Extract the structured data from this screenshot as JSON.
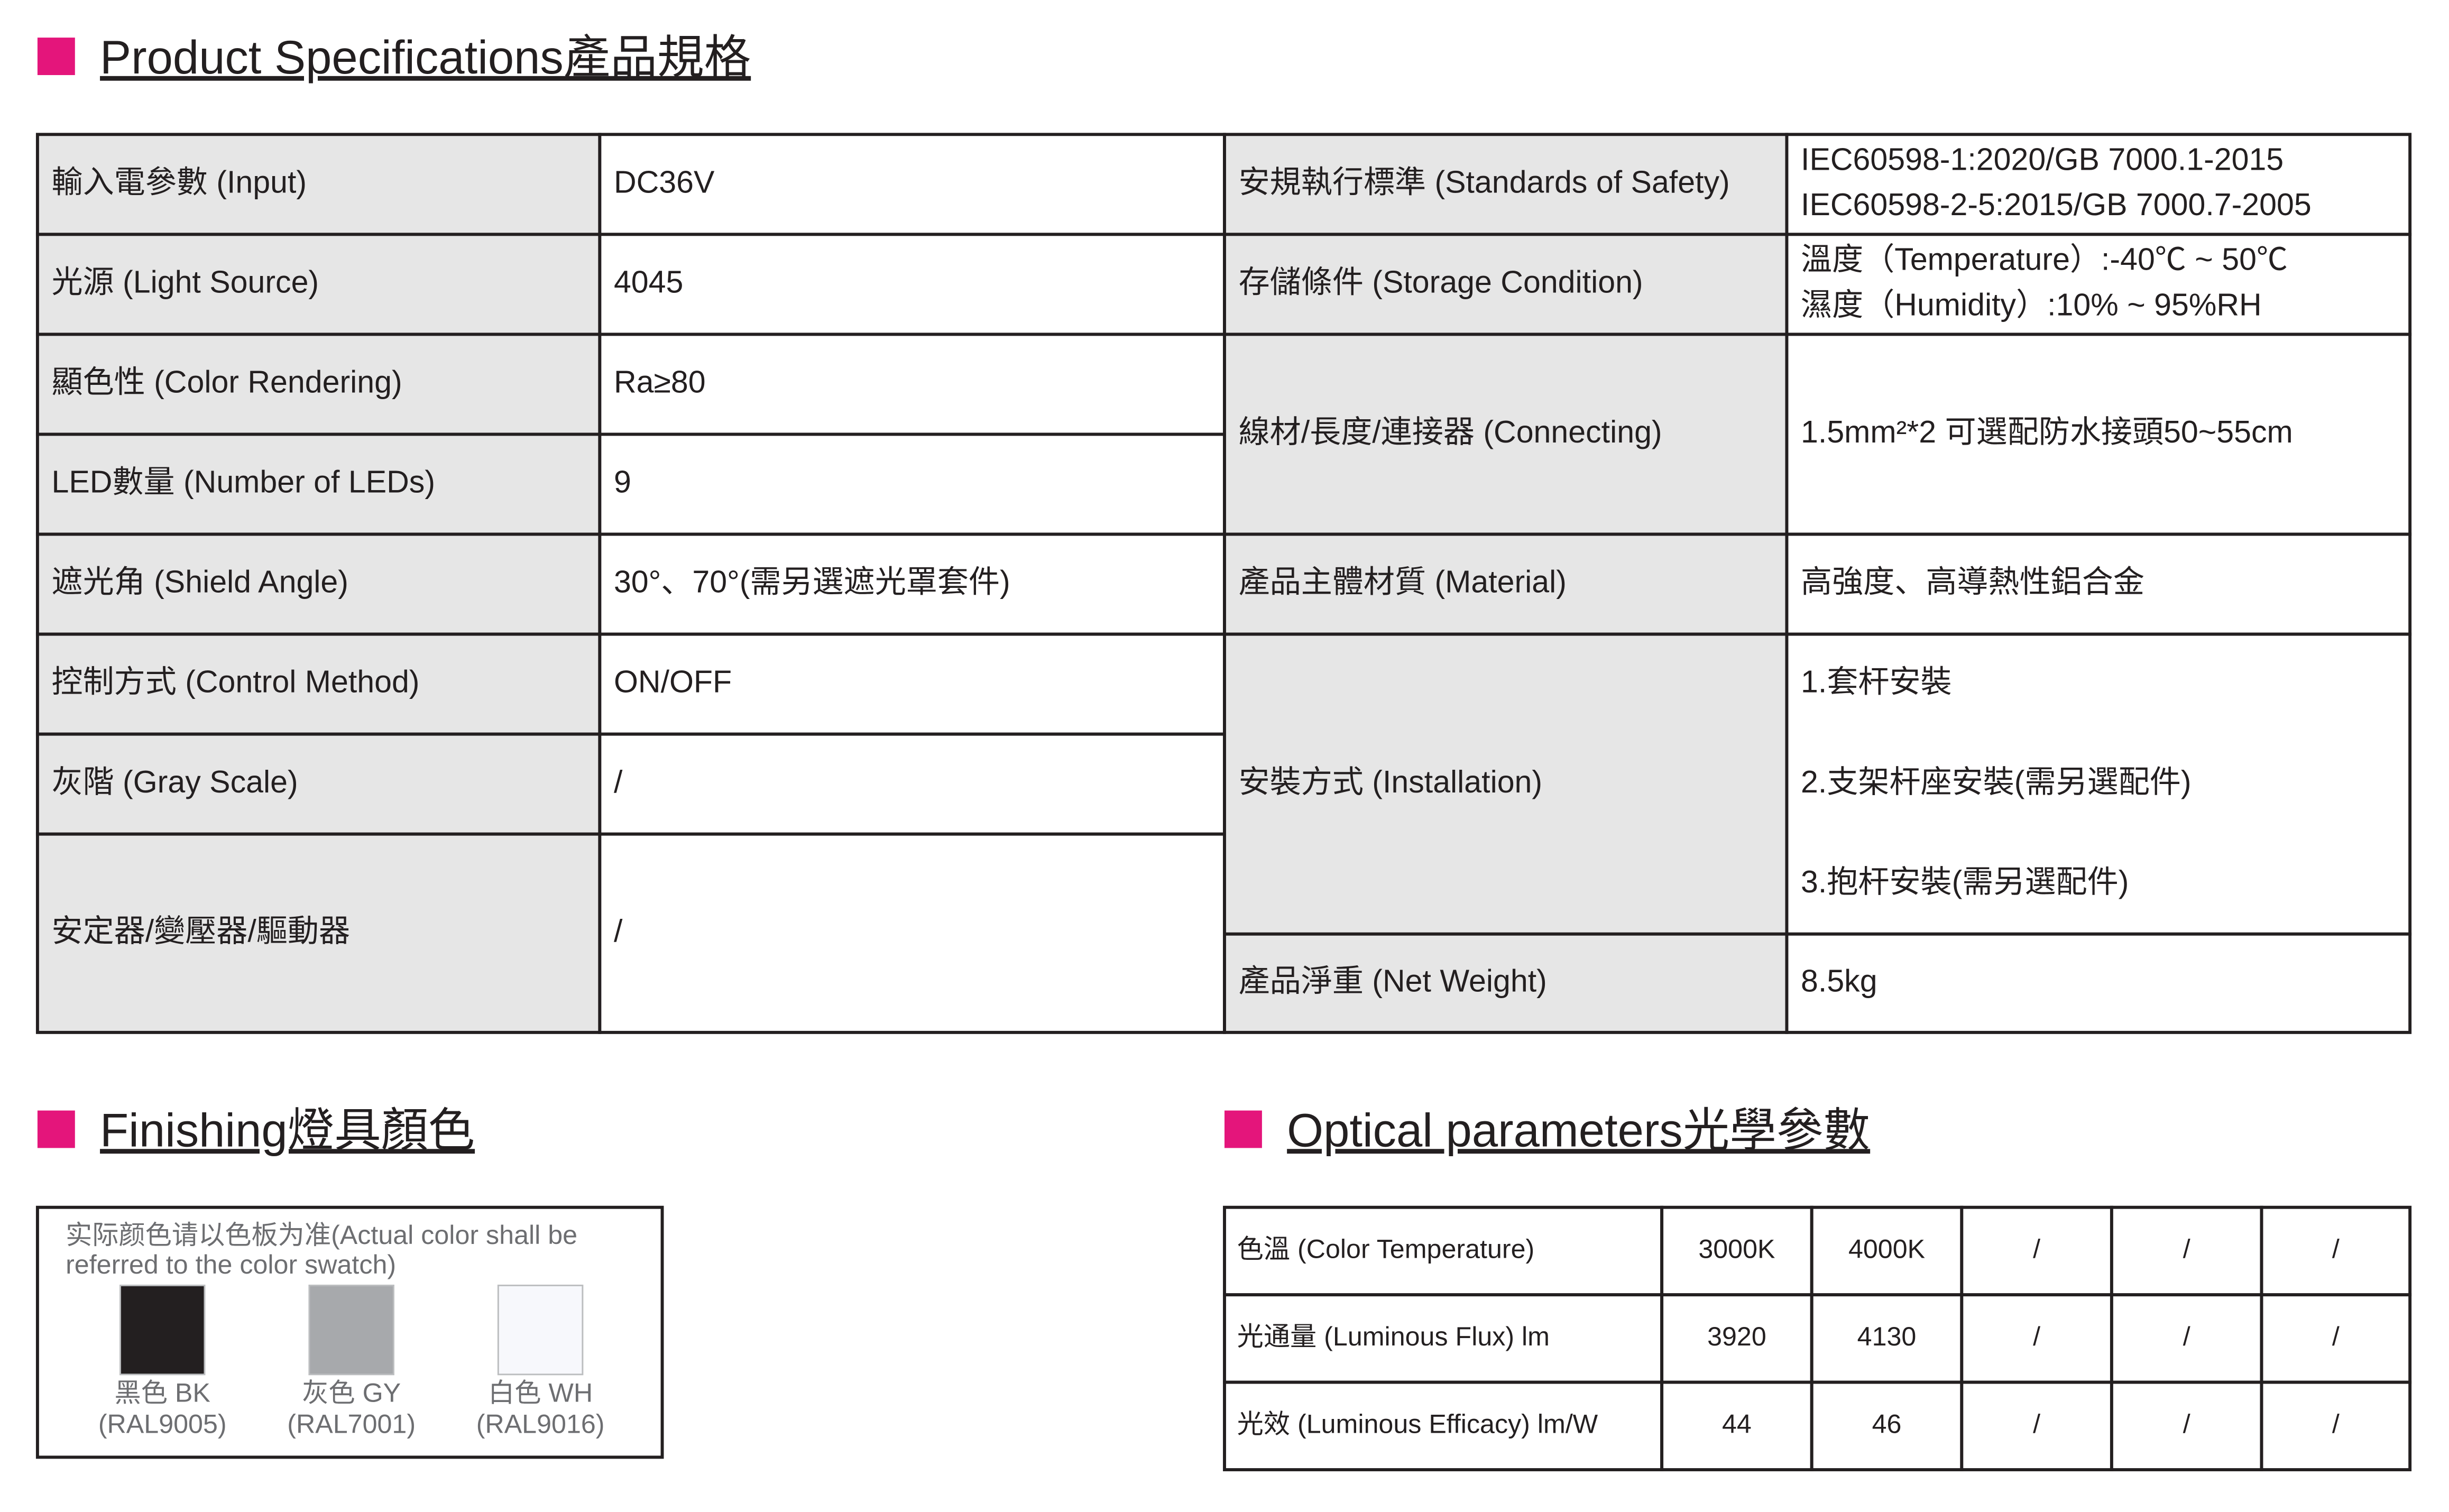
{
  "specifications": {
    "title": "Product Specifications產品規格",
    "left": [
      {
        "label": "輸入電參數 (Input)",
        "value": "DC36V"
      },
      {
        "label": "光源 (Light Source)",
        "value": "4045"
      },
      {
        "label": "顯色性 (Color Rendering)",
        "value": "Ra≥80"
      },
      {
        "label": "LED數量 (Number of LEDs)",
        "value": "9"
      },
      {
        "label": "遮光角 (Shield Angle)",
        "value": "30°、70°(需另選遮光罩套件)"
      },
      {
        "label": "控制方式 (Control Method)",
        "value": "ON/OFF"
      },
      {
        "label": "灰階 (Gray Scale)",
        "value": "/"
      },
      {
        "label": "安定器/變壓器/驅動器",
        "value": "/"
      }
    ],
    "right": [
      {
        "label": "安規執行標準 (Standards of Safety)",
        "lines": [
          "IEC60598-1:2020/GB 7000.1-2015",
          "IEC60598-2-5:2015/GB 7000.7-2005"
        ]
      },
      {
        "label": "存儲條件 (Storage Condition)",
        "lines": [
          "溫度（Temperature）:-40℃ ~ 50℃",
          "濕度（Humidity）:10% ~ 95%RH"
        ]
      },
      {
        "label": "線材/長度/連接器 (Connecting)",
        "lines": [
          "1.5mm²*2 可選配防水接頭50~55cm"
        ]
      },
      {
        "label": "產品主體材質 (Material)",
        "lines": [
          "高強度、高導熱性鋁合金"
        ]
      },
      {
        "label": "安裝方式 (Installation)",
        "lines": [
          "1.套杆安裝",
          "2.支架杆座安裝(需另選配件)",
          "3.抱杆安裝(需另選配件)"
        ]
      },
      {
        "label": "產品淨重 (Net Weight)",
        "lines": [
          "8.5kg"
        ]
      }
    ]
  },
  "finishing": {
    "title": "Finishing燈具顏色",
    "note": [
      "实际颜色请以色板为准(Actual color shall be",
      "referred to the color swatch)"
    ],
    "colors": [
      {
        "name": "黑色 BK",
        "code": "(RAL9005)",
        "color": "#231f20"
      },
      {
        "name": "灰色 GY",
        "code": "(RAL7001)",
        "color": "#a7a9ac"
      },
      {
        "name": "白色 WH",
        "code": "(RAL9016)",
        "color": "#f7f8fc"
      }
    ]
  },
  "optical": {
    "title": "Optical parameters光學參數",
    "rows": [
      [
        "色溫 (Color Temperature)",
        "3000K",
        "4000K",
        "/",
        "/",
        "/"
      ],
      [
        "光通量 (Luminous Flux) lm",
        "3920",
        "4130",
        "/",
        "/",
        "/"
      ],
      [
        "光效 (Luminous Efficacy) lm/W",
        "44",
        "46",
        "/",
        "/",
        "/"
      ]
    ]
  }
}
